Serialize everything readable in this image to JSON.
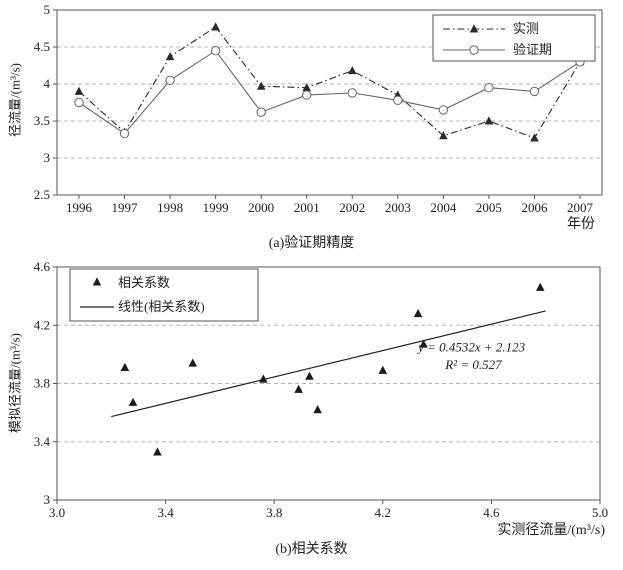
{
  "page": {
    "background": "#ffffff"
  },
  "chart_data": [
    {
      "type": "line",
      "title": "(a)验证期精度",
      "xlabel": "年份",
      "ylabel": "径流量/(m³/s)",
      "categories": [
        "1996",
        "1997",
        "1998",
        "1999",
        "2000",
        "2001",
        "2002",
        "2003",
        "2004",
        "2005",
        "2006",
        "2007"
      ],
      "ylim": [
        2.5,
        5
      ],
      "yticks": [
        [
          5,
          "5"
        ],
        [
          4.5,
          "4.5"
        ],
        [
          4,
          "4"
        ],
        [
          3.5,
          "3.5"
        ],
        [
          3,
          "3"
        ],
        [
          2.5,
          "2.5"
        ]
      ],
      "grid": "horizontal-dashed",
      "legend_position": "top-right",
      "series": [
        {
          "name": "实测",
          "marker": "triangle",
          "line": "dashdot",
          "color": "#2a2a2a",
          "values": [
            3.9,
            3.35,
            4.37,
            4.77,
            3.97,
            3.95,
            4.18,
            3.85,
            3.3,
            3.5,
            3.27,
            4.3
          ]
        },
        {
          "name": "验证期",
          "marker": "circle",
          "line": "solid",
          "color": "#666666",
          "values": [
            3.75,
            3.33,
            4.05,
            4.45,
            3.62,
            3.85,
            3.88,
            3.78,
            3.65,
            3.95,
            3.9,
            4.3
          ]
        }
      ]
    },
    {
      "type": "scatter",
      "title": "(b)相关系数",
      "xlabel": "实测径流量/(m³/s)",
      "ylabel": "模拟径流量/(m³/s)",
      "xlim": [
        3.0,
        5.0
      ],
      "ylim": [
        3.0,
        4.6
      ],
      "xticks": [
        [
          3.0,
          "3.0"
        ],
        [
          3.4,
          "3.4"
        ],
        [
          3.8,
          "3.8"
        ],
        [
          4.2,
          "4.2"
        ],
        [
          4.6,
          "4.6"
        ],
        [
          5.0,
          "5.0"
        ]
      ],
      "yticks": [
        [
          4.6,
          "4.6"
        ],
        [
          4.2,
          "4.2"
        ],
        [
          3.8,
          "3.8"
        ],
        [
          3.4,
          "3.4"
        ],
        [
          3,
          "3"
        ]
      ],
      "grid": "horizontal-dashed",
      "legend_position": "top-left",
      "point_color": "#1a1a1a",
      "points": [
        [
          3.25,
          3.91
        ],
        [
          3.28,
          3.67
        ],
        [
          3.37,
          3.33
        ],
        [
          3.5,
          3.94
        ],
        [
          3.76,
          3.83
        ],
        [
          3.89,
          3.76
        ],
        [
          3.93,
          3.85
        ],
        [
          3.96,
          3.62
        ],
        [
          4.2,
          3.89
        ],
        [
          4.33,
          4.28
        ],
        [
          4.35,
          4.07
        ],
        [
          4.78,
          4.46
        ]
      ],
      "trendline": {
        "slope": 0.4532,
        "intercept": 2.123,
        "x_start": 3.2,
        "x_end": 4.8,
        "color": "#222222"
      },
      "annotations": [
        {
          "text": "y = 0.4532x + 2.123",
          "x": 4.33,
          "y": 4.02
        },
        {
          "text": "R² = 0.527",
          "x": 4.43,
          "y": 3.9
        }
      ],
      "legend": [
        {
          "label": "相关系数",
          "marker": "triangle"
        },
        {
          "label": "线性(相关系数)",
          "marker": "line"
        }
      ]
    }
  ]
}
